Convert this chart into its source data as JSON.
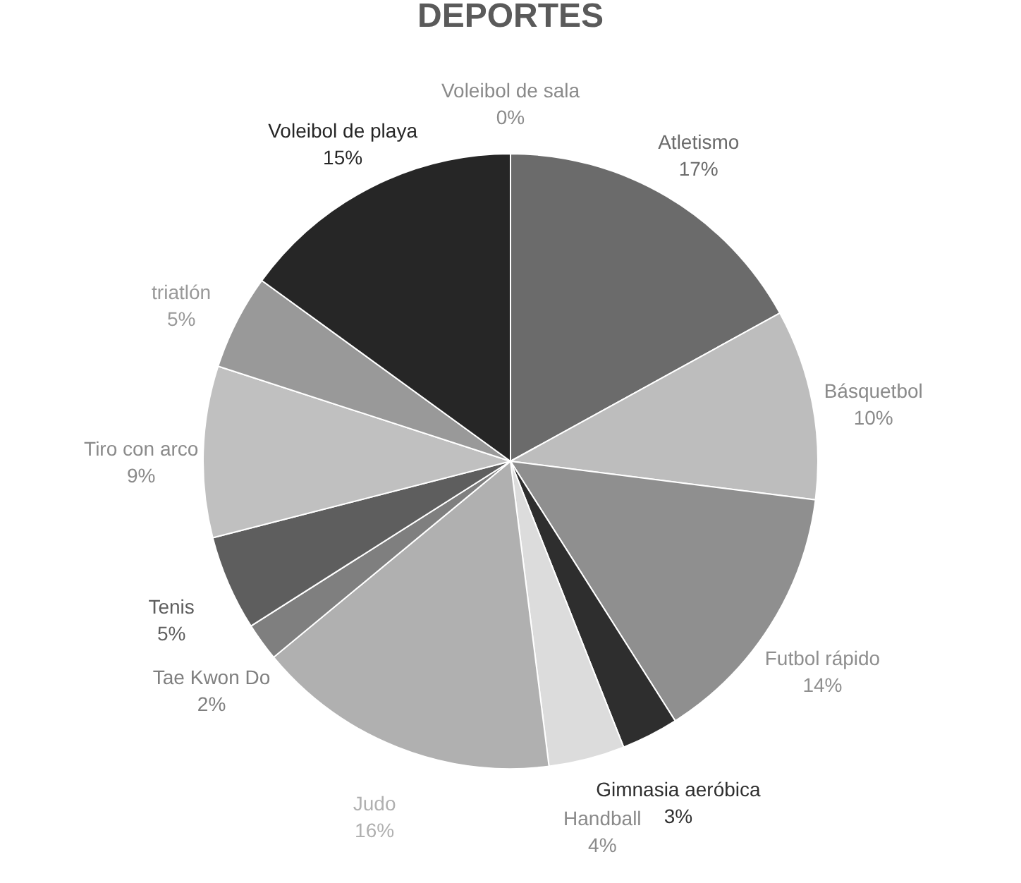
{
  "chart_data": {
    "type": "pie",
    "title": "DEPORTES",
    "categories": [
      "Atletismo",
      "Básquetbol",
      "Futbol rápido",
      "Gimnasia aeróbica",
      "Handball",
      "Judo",
      "Tae Kwon Do",
      "Tenis",
      "Tiro con arco",
      "triatlón",
      "Voleibol de playa",
      "Voleibol de sala"
    ],
    "values": [
      17,
      10,
      14,
      3,
      4,
      16,
      2,
      5,
      9,
      5,
      15,
      0
    ],
    "value_labels": [
      "17%",
      "10%",
      "14%",
      "3%",
      "4%",
      "16%",
      "2%",
      "5%",
      "9%",
      "5%",
      "15%",
      "0%"
    ],
    "colors": [
      "#6b6b6b",
      "#bdbdbd",
      "#8f8f8f",
      "#2e2e2e",
      "#dcdcdc",
      "#b0b0b0",
      "#7f7f7f",
      "#5e5e5e",
      "#c0c0c0",
      "#999999",
      "#262626",
      "#e0e0e0"
    ],
    "legend": false
  }
}
